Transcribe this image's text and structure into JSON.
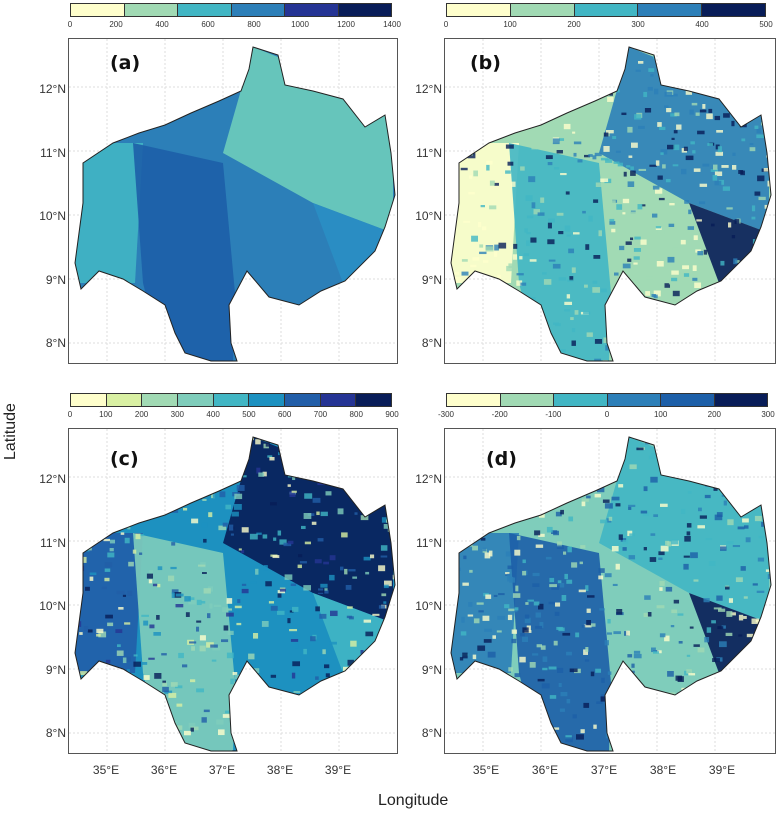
{
  "axes": {
    "x_title": "Longitude",
    "y_title": "Latitude",
    "lat_labels": [
      "12°N",
      "11°N",
      "10°N",
      "9°N",
      "8°N"
    ],
    "lon_labels": [
      "35°E",
      "36°E",
      "37°E",
      "38°E",
      "39°E"
    ]
  },
  "panels": [
    {
      "label": "(a)",
      "legend": {
        "ticks": [
          "0",
          "200",
          "400",
          "600",
          "800",
          "1000",
          "1200",
          "1400"
        ],
        "colors": [
          "#ffffcc",
          "#a1dab4",
          "#41b6c4",
          "#2c7fb8",
          "#253494",
          "#081d58"
        ]
      },
      "fill_main": "#2c7fb8",
      "fill_zones": [
        "#41b6c4",
        "#1d5fa8",
        "#6dcdbb",
        "#2a8fc4"
      ]
    },
    {
      "label": "(b)",
      "legend": {
        "ticks": [
          "0",
          "100",
          "200",
          "300",
          "400",
          "500"
        ],
        "colors": [
          "#ffffcc",
          "#a1dab4",
          "#41b6c4",
          "#2c7fb8",
          "#081d58"
        ]
      },
      "fill_main": "#a1dab4",
      "fill_zones": [
        "#ffffcc",
        "#41b6c4",
        "#2c7fb8",
        "#081d58"
      ]
    },
    {
      "label": "(c)",
      "legend": {
        "ticks": [
          "0",
          "100",
          "200",
          "300",
          "400",
          "500",
          "600",
          "700",
          "800",
          "900"
        ],
        "colors": [
          "#ffffcc",
          "#d9f0a3",
          "#a1dab4",
          "#7fcdbb",
          "#41b6c4",
          "#1d91c0",
          "#225ea8",
          "#253494",
          "#081d58"
        ]
      },
      "fill_main": "#1d91c0",
      "fill_zones": [
        "#225ea8",
        "#7fcdbb",
        "#081d58",
        "#41b6c4"
      ]
    },
    {
      "label": "(d)",
      "legend": {
        "ticks": [
          "-300",
          "-200",
          "-100",
          "0",
          "100",
          "200",
          "300"
        ],
        "colors": [
          "#ffffcc",
          "#a1dab4",
          "#41b6c4",
          "#2c7fb8",
          "#1d5fa8",
          "#081d58"
        ]
      },
      "fill_main": "#7fcdbb",
      "fill_zones": [
        "#2c7fb8",
        "#1d5fa8",
        "#41b6c4",
        "#081d58"
      ]
    }
  ]
}
